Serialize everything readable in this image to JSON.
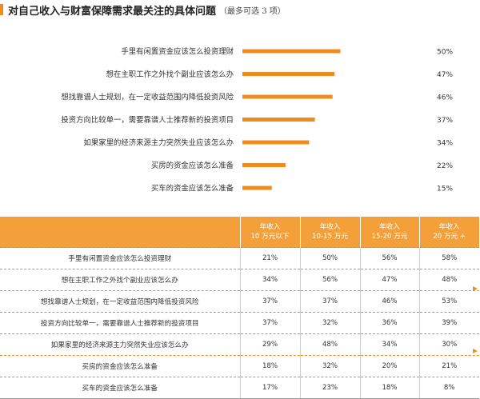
{
  "header": {
    "title": "对自己收入与财富保障需求最关注的具体问题",
    "subtitle": "（最多可选 3 项）"
  },
  "chart_data": [
    {
      "type": "bar",
      "orientation": "horizontal",
      "title": "对自己收入与财富保障需求最关注的具体问题",
      "subtitle": "（最多可选 3 项）",
      "categories": [
        "手里有闲置资金应该怎么投资理财",
        "想在主职工作之外找个副业应该怎么办",
        "想找靠谱人士规划，在一定收益范围内降低投资风险",
        "投资方向比较单一，需要靠谱人士推荐新的投资项目",
        "如果家里的经济来源主力突然失业应该怎么办",
        "买房的资金应该怎么准备",
        "买车的资金应该怎么准备"
      ],
      "values": [
        50,
        47,
        46,
        37,
        34,
        22,
        15
      ],
      "value_labels": [
        "50%",
        "47%",
        "46%",
        "37%",
        "34%",
        "22%",
        "15%"
      ],
      "unit": "%",
      "bar_color": "#f08c1e",
      "grid": false
    },
    {
      "type": "table",
      "columns": [
        "",
        "年收入\n10 万元以下",
        "年收入\n10-15 万元",
        "年收入\n15-20 万元",
        "年收入\n20 万元 +"
      ],
      "rows": [
        [
          "手里有闲置资金应该怎么投资理财",
          "21%",
          "50%",
          "56%",
          "58%"
        ],
        [
          "想在主职工作之外找个副业应该怎么办",
          "34%",
          "56%",
          "47%",
          "48%"
        ],
        [
          "想找靠谱人士规划，在一定收益范围内降低投资风险",
          "37%",
          "37%",
          "46%",
          "53%"
        ],
        [
          "投资方向比较单一，需要靠谱人士推荐新的投资项目",
          "37%",
          "32%",
          "36%",
          "39%"
        ],
        [
          "如果家里的经济来源主力突然失业应该怎么办",
          "29%",
          "48%",
          "34%",
          "30%"
        ],
        [
          "买房的资金应该怎么准备",
          "18%",
          "32%",
          "20%",
          "21%"
        ],
        [
          "买车的资金应该怎么准备",
          "17%",
          "23%",
          "18%",
          "8%"
        ]
      ],
      "header_color": "#f4a03a",
      "highlight_arrows_after_rows": [
        1,
        4
      ],
      "accent_color": "#f08c1e"
    }
  ]
}
